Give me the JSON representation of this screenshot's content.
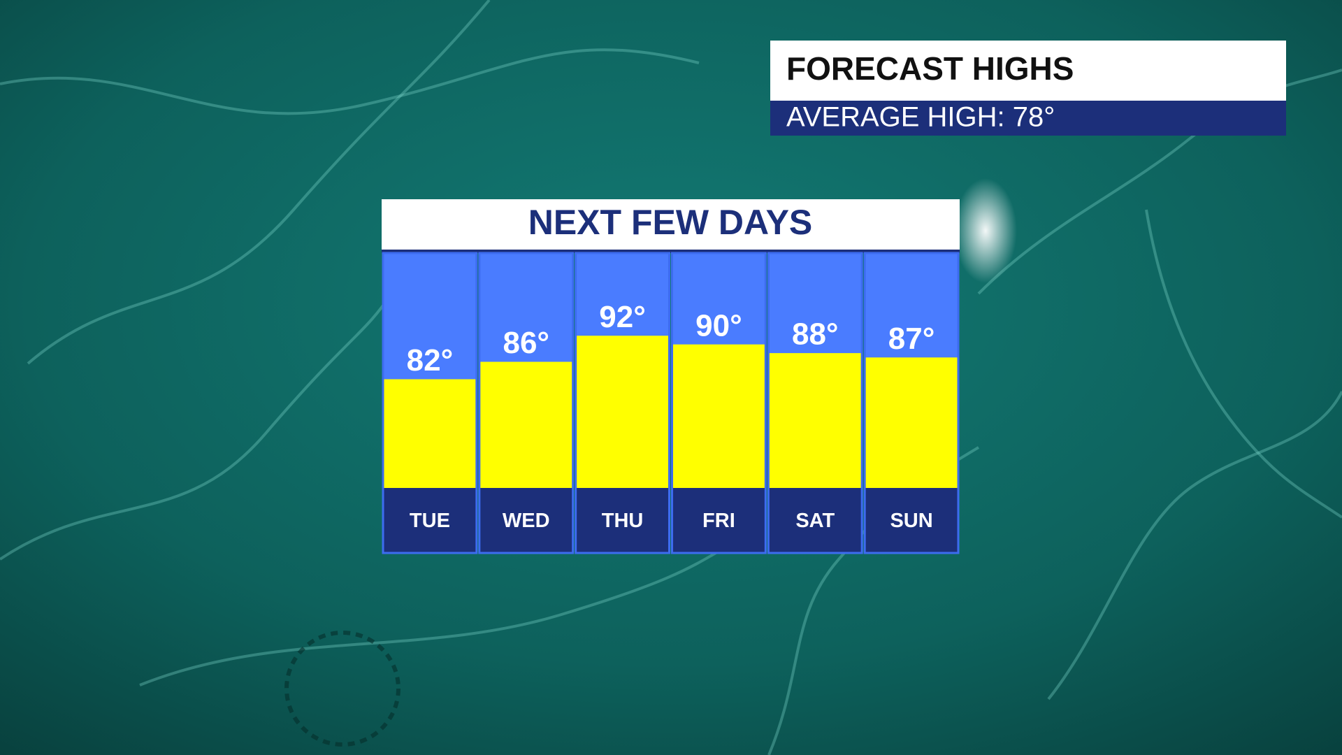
{
  "header": {
    "title": "FORECAST HIGHS",
    "subtitle": "AVERAGE HIGH: 78°"
  },
  "chart_data": {
    "type": "bar",
    "title": "NEXT FEW DAYS",
    "categories": [
      "TUE",
      "WED",
      "THU",
      "FRI",
      "SAT",
      "SUN"
    ],
    "values": [
      82,
      86,
      92,
      90,
      88,
      87
    ],
    "value_labels": [
      "82°",
      "86°",
      "92°",
      "90°",
      "88°",
      "87°"
    ],
    "color": "#ffff00",
    "ylim": [
      57,
      111
    ]
  }
}
